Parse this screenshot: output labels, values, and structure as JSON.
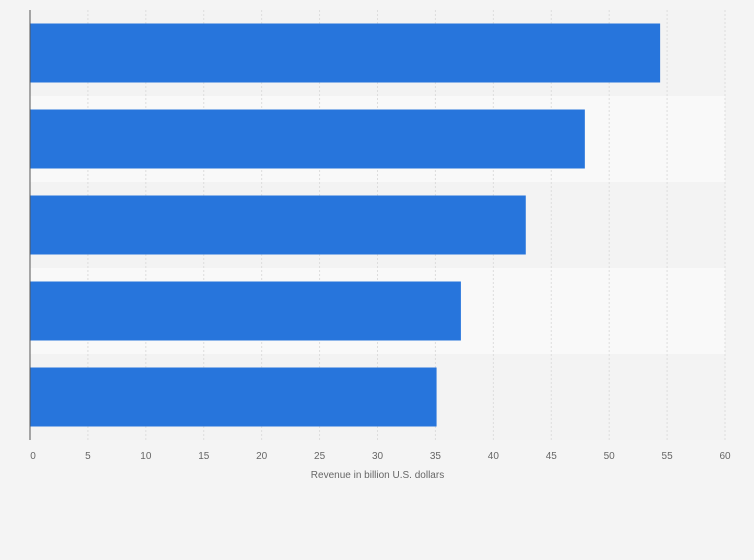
{
  "chart_data": {
    "type": "bar",
    "orientation": "horizontal",
    "categories": [
      "",
      "",
      "",
      "",
      ""
    ],
    "values": [
      54.4,
      47.9,
      42.8,
      37.2,
      35.1
    ],
    "title": "",
    "xlabel": "Revenue in billion U.S. dollars",
    "ylabel": "",
    "xlim": [
      0,
      60
    ],
    "xticks": [
      0,
      5,
      10,
      15,
      20,
      25,
      30,
      35,
      40,
      45,
      50,
      55,
      60
    ],
    "grid": true,
    "legend": "none",
    "colors": {
      "bar": "#2775dc",
      "band_dark": "#f3f3f3",
      "band_light": "#f9f9f9",
      "grid": "#dddddd",
      "axis": "#555555",
      "text": "#666666"
    }
  }
}
